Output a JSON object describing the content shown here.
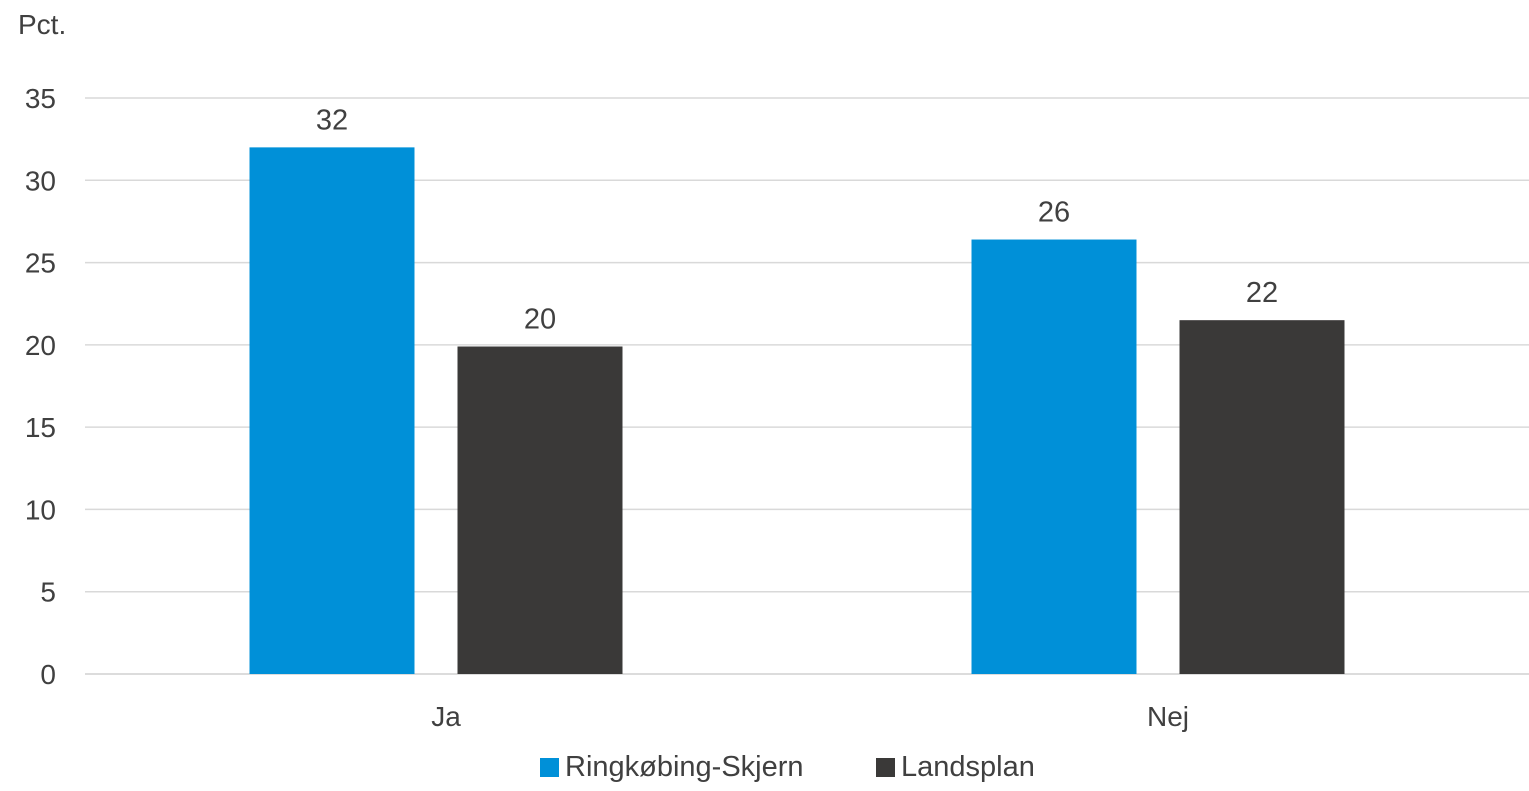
{
  "chart_data": {
    "type": "bar",
    "title": "",
    "xlabel": "",
    "ylabel": "Pct.",
    "categories": [
      "Ja",
      "Nej"
    ],
    "series": [
      {
        "name": "Ringkøbing-Skjern",
        "color": "#0090d8",
        "values": [
          32,
          26.4
        ]
      },
      {
        "name": "Landsplan",
        "color": "#3a3938",
        "values": [
          19.9,
          21.5
        ]
      }
    ],
    "data_labels": [
      [
        "32",
        "26"
      ],
      [
        "20",
        "22"
      ]
    ],
    "ylim": [
      0,
      35
    ],
    "yticks": [
      0,
      5,
      10,
      15,
      20,
      25,
      30,
      35
    ],
    "grid": true,
    "legend": "bottom-center"
  }
}
